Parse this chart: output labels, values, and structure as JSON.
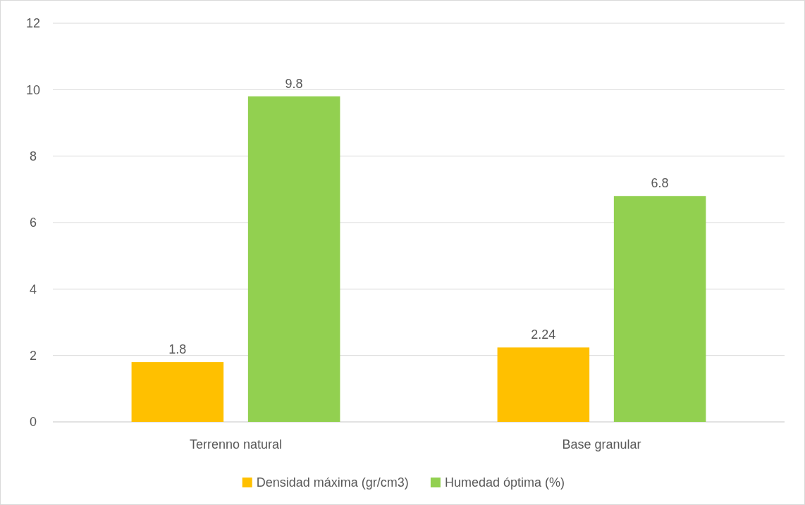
{
  "chart_data": {
    "type": "bar",
    "categories": [
      "Terrenno natural",
      "Base granular"
    ],
    "series": [
      {
        "name": "Densidad máxima (gr/cm3)",
        "color": "#ffc000",
        "values": [
          1.8,
          2.24
        ]
      },
      {
        "name": "Humedad óptima (%)",
        "color": "#92d050",
        "values": [
          9.8,
          6.8
        ]
      }
    ],
    "ylim": [
      0,
      12
    ],
    "yticks": [
      0,
      2,
      4,
      6,
      8,
      10,
      12
    ],
    "grid": "y",
    "legend": "bottom",
    "data_labels": true
  }
}
